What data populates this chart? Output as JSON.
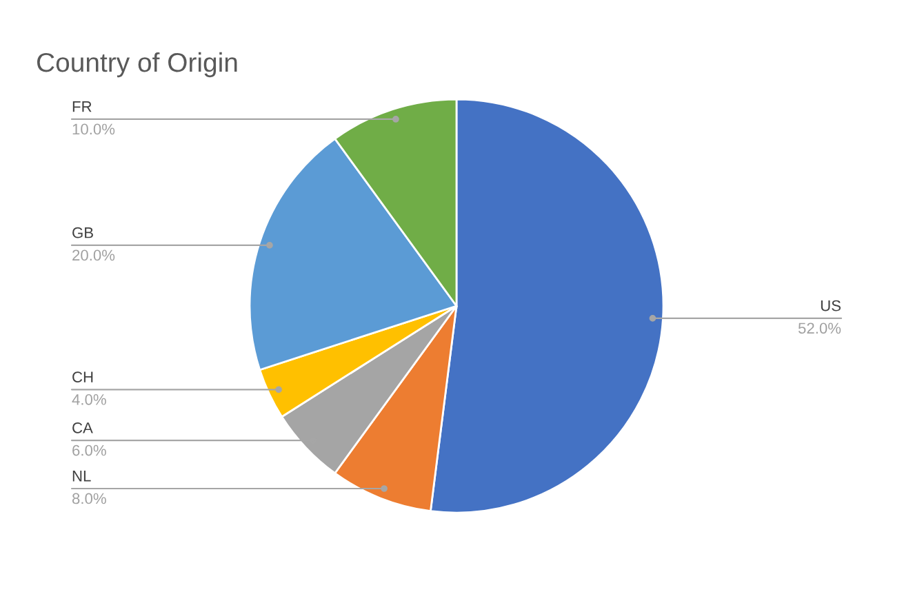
{
  "chart_data": {
    "type": "pie",
    "title": "Country of Origin",
    "categories": [
      "US",
      "NL",
      "CA",
      "CH",
      "GB",
      "FR"
    ],
    "values": [
      52,
      8,
      6,
      4,
      20,
      10
    ],
    "value_labels": [
      "52.0%",
      "8.0%",
      "6.0%",
      "4.0%",
      "20.0%",
      "10.0%"
    ],
    "colors": [
      "#4472c4",
      "#ed7d31",
      "#a5a5a5",
      "#ffc000",
      "#5b9bd5",
      "#70ad47"
    ]
  }
}
